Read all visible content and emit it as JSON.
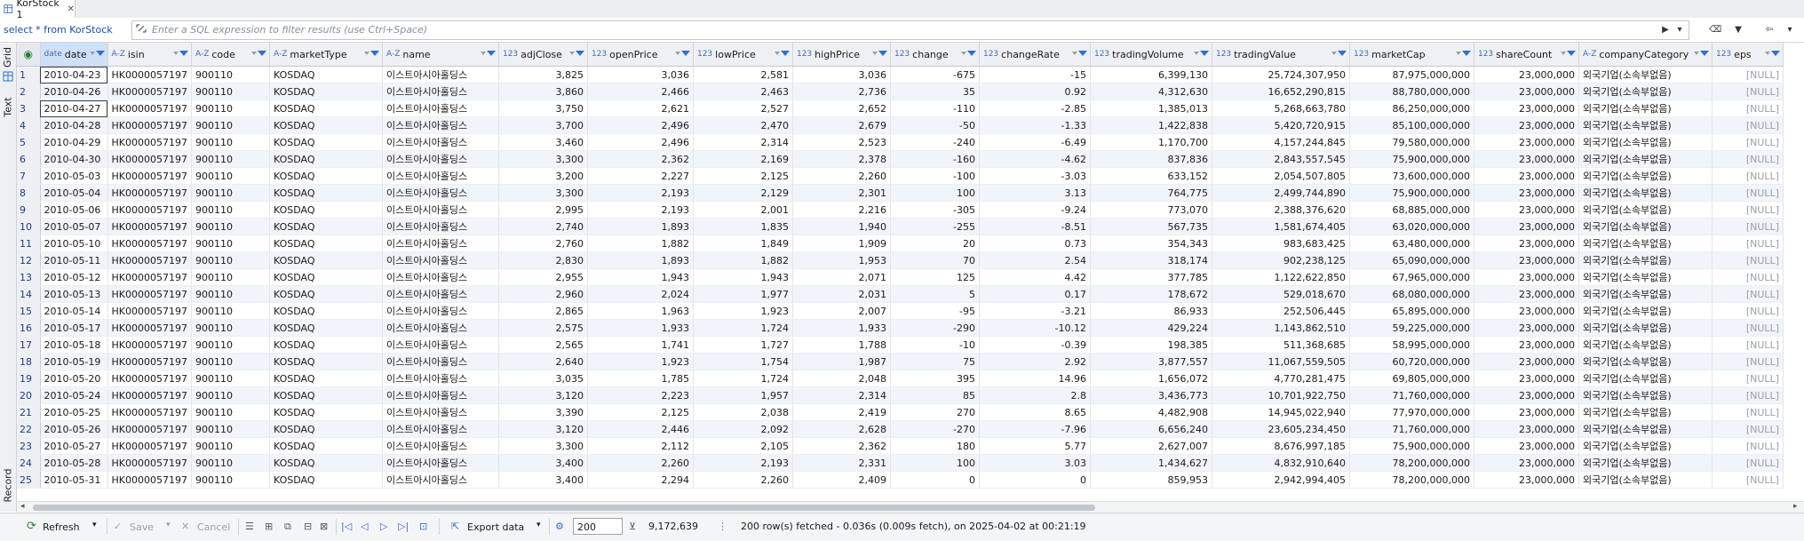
{
  "tab": {
    "title": "KorStock 1",
    "close": "✕"
  },
  "filter": {
    "query": "select * from KorStock",
    "placeholder": "Enter a SQL expression to filter results (use Ctrl+Space)"
  },
  "left_tabs": {
    "grid": "Grid",
    "text": "Text",
    "record": "Record"
  },
  "columns": [
    {
      "type": "date",
      "name": "date"
    },
    {
      "type": "A-Z",
      "name": "isin"
    },
    {
      "type": "A-Z",
      "name": "code"
    },
    {
      "type": "A-Z",
      "name": "marketType"
    },
    {
      "type": "A-Z",
      "name": "name"
    },
    {
      "type": "123",
      "name": "adjClose"
    },
    {
      "type": "123",
      "name": "openPrice"
    },
    {
      "type": "123",
      "name": "lowPrice"
    },
    {
      "type": "123",
      "name": "highPrice"
    },
    {
      "type": "123",
      "name": "change"
    },
    {
      "type": "123",
      "name": "changeRate"
    },
    {
      "type": "123",
      "name": "tradingVolume"
    },
    {
      "type": "123",
      "name": "tradingValue"
    },
    {
      "type": "123",
      "name": "marketCap"
    },
    {
      "type": "123",
      "name": "shareCount"
    },
    {
      "type": "A-Z",
      "name": "companyCategory"
    },
    {
      "type": "123",
      "name": "eps"
    }
  ],
  "rows": [
    [
      "1",
      "2010-04-23",
      "HK0000057197",
      "900110",
      "KOSDAQ",
      "이스트아시아홀딩스",
      "3,825",
      "3,036",
      "2,581",
      "3,036",
      "-675",
      "-15",
      "6,399,130",
      "25,724,307,950",
      "87,975,000,000",
      "23,000,000",
      "외국기업(소속부없음)",
      "[NULL]"
    ],
    [
      "2",
      "2010-04-26",
      "HK0000057197",
      "900110",
      "KOSDAQ",
      "이스트아시아홀딩스",
      "3,860",
      "2,466",
      "2,463",
      "2,736",
      "35",
      "0.92",
      "4,312,630",
      "16,652,290,815",
      "88,780,000,000",
      "23,000,000",
      "외국기업(소속부없음)",
      "[NULL]"
    ],
    [
      "3",
      "2010-04-27",
      "HK0000057197",
      "900110",
      "KOSDAQ",
      "이스트아시아홀딩스",
      "3,750",
      "2,621",
      "2,527",
      "2,652",
      "-110",
      "-2.85",
      "1,385,013",
      "5,268,663,780",
      "86,250,000,000",
      "23,000,000",
      "외국기업(소속부없음)",
      "[NULL]"
    ],
    [
      "4",
      "2010-04-28",
      "HK0000057197",
      "900110",
      "KOSDAQ",
      "이스트아시아홀딩스",
      "3,700",
      "2,496",
      "2,470",
      "2,679",
      "-50",
      "-1.33",
      "1,422,838",
      "5,420,720,915",
      "85,100,000,000",
      "23,000,000",
      "외국기업(소속부없음)",
      "[NULL]"
    ],
    [
      "5",
      "2010-04-29",
      "HK0000057197",
      "900110",
      "KOSDAQ",
      "이스트아시아홀딩스",
      "3,460",
      "2,496",
      "2,314",
      "2,523",
      "-240",
      "-6.49",
      "1,170,700",
      "4,157,244,845",
      "79,580,000,000",
      "23,000,000",
      "외국기업(소속부없음)",
      "[NULL]"
    ],
    [
      "6",
      "2010-04-30",
      "HK0000057197",
      "900110",
      "KOSDAQ",
      "이스트아시아홀딩스",
      "3,300",
      "2,362",
      "2,169",
      "2,378",
      "-160",
      "-4.62",
      "837,836",
      "2,843,557,545",
      "75,900,000,000",
      "23,000,000",
      "외국기업(소속부없음)",
      "[NULL]"
    ],
    [
      "7",
      "2010-05-03",
      "HK0000057197",
      "900110",
      "KOSDAQ",
      "이스트아시아홀딩스",
      "3,200",
      "2,227",
      "2,125",
      "2,260",
      "-100",
      "-3.03",
      "633,152",
      "2,054,507,805",
      "73,600,000,000",
      "23,000,000",
      "외국기업(소속부없음)",
      "[NULL]"
    ],
    [
      "8",
      "2010-05-04",
      "HK0000057197",
      "900110",
      "KOSDAQ",
      "이스트아시아홀딩스",
      "3,300",
      "2,193",
      "2,129",
      "2,301",
      "100",
      "3.13",
      "764,775",
      "2,499,744,890",
      "75,900,000,000",
      "23,000,000",
      "외국기업(소속부없음)",
      "[NULL]"
    ],
    [
      "9",
      "2010-05-06",
      "HK0000057197",
      "900110",
      "KOSDAQ",
      "이스트아시아홀딩스",
      "2,995",
      "2,193",
      "2,001",
      "2,216",
      "-305",
      "-9.24",
      "773,070",
      "2,388,376,620",
      "68,885,000,000",
      "23,000,000",
      "외국기업(소속부없음)",
      "[NULL]"
    ],
    [
      "10",
      "2010-05-07",
      "HK0000057197",
      "900110",
      "KOSDAQ",
      "이스트아시아홀딩스",
      "2,740",
      "1,893",
      "1,835",
      "1,940",
      "-255",
      "-8.51",
      "567,735",
      "1,581,674,405",
      "63,020,000,000",
      "23,000,000",
      "외국기업(소속부없음)",
      "[NULL]"
    ],
    [
      "11",
      "2010-05-10",
      "HK0000057197",
      "900110",
      "KOSDAQ",
      "이스트아시아홀딩스",
      "2,760",
      "1,882",
      "1,849",
      "1,909",
      "20",
      "0.73",
      "354,343",
      "983,683,425",
      "63,480,000,000",
      "23,000,000",
      "외국기업(소속부없음)",
      "[NULL]"
    ],
    [
      "12",
      "2010-05-11",
      "HK0000057197",
      "900110",
      "KOSDAQ",
      "이스트아시아홀딩스",
      "2,830",
      "1,893",
      "1,882",
      "1,953",
      "70",
      "2.54",
      "318,174",
      "902,238,125",
      "65,090,000,000",
      "23,000,000",
      "외국기업(소속부없음)",
      "[NULL]"
    ],
    [
      "13",
      "2010-05-12",
      "HK0000057197",
      "900110",
      "KOSDAQ",
      "이스트아시아홀딩스",
      "2,955",
      "1,943",
      "1,943",
      "2,071",
      "125",
      "4.42",
      "377,785",
      "1,122,622,850",
      "67,965,000,000",
      "23,000,000",
      "외국기업(소속부없음)",
      "[NULL]"
    ],
    [
      "14",
      "2010-05-13",
      "HK0000057197",
      "900110",
      "KOSDAQ",
      "이스트아시아홀딩스",
      "2,960",
      "2,024",
      "1,977",
      "2,031",
      "5",
      "0.17",
      "178,672",
      "529,018,670",
      "68,080,000,000",
      "23,000,000",
      "외국기업(소속부없음)",
      "[NULL]"
    ],
    [
      "15",
      "2010-05-14",
      "HK0000057197",
      "900110",
      "KOSDAQ",
      "이스트아시아홀딩스",
      "2,865",
      "1,963",
      "1,923",
      "2,007",
      "-95",
      "-3.21",
      "86,933",
      "252,506,445",
      "65,895,000,000",
      "23,000,000",
      "외국기업(소속부없음)",
      "[NULL]"
    ],
    [
      "16",
      "2010-05-17",
      "HK0000057197",
      "900110",
      "KOSDAQ",
      "이스트아시아홀딩스",
      "2,575",
      "1,933",
      "1,724",
      "1,933",
      "-290",
      "-10.12",
      "429,224",
      "1,143,862,510",
      "59,225,000,000",
      "23,000,000",
      "외국기업(소속부없음)",
      "[NULL]"
    ],
    [
      "17",
      "2010-05-18",
      "HK0000057197",
      "900110",
      "KOSDAQ",
      "이스트아시아홀딩스",
      "2,565",
      "1,741",
      "1,727",
      "1,788",
      "-10",
      "-0.39",
      "198,385",
      "511,368,685",
      "58,995,000,000",
      "23,000,000",
      "외국기업(소속부없음)",
      "[NULL]"
    ],
    [
      "18",
      "2010-05-19",
      "HK0000057197",
      "900110",
      "KOSDAQ",
      "이스트아시아홀딩스",
      "2,640",
      "1,923",
      "1,754",
      "1,987",
      "75",
      "2.92",
      "3,877,557",
      "11,067,559,505",
      "60,720,000,000",
      "23,000,000",
      "외국기업(소속부없음)",
      "[NULL]"
    ],
    [
      "19",
      "2010-05-20",
      "HK0000057197",
      "900110",
      "KOSDAQ",
      "이스트아시아홀딩스",
      "3,035",
      "1,785",
      "1,724",
      "2,048",
      "395",
      "14.96",
      "1,656,072",
      "4,770,281,475",
      "69,805,000,000",
      "23,000,000",
      "외국기업(소속부없음)",
      "[NULL]"
    ],
    [
      "20",
      "2010-05-24",
      "HK0000057197",
      "900110",
      "KOSDAQ",
      "이스트아시아홀딩스",
      "3,120",
      "2,223",
      "1,957",
      "2,314",
      "85",
      "2.8",
      "3,436,773",
      "10,701,922,750",
      "71,760,000,000",
      "23,000,000",
      "외국기업(소속부없음)",
      "[NULL]"
    ],
    [
      "21",
      "2010-05-25",
      "HK0000057197",
      "900110",
      "KOSDAQ",
      "이스트아시아홀딩스",
      "3,390",
      "2,125",
      "2,038",
      "2,419",
      "270",
      "8.65",
      "4,482,908",
      "14,945,022,940",
      "77,970,000,000",
      "23,000,000",
      "외국기업(소속부없음)",
      "[NULL]"
    ],
    [
      "22",
      "2010-05-26",
      "HK0000057197",
      "900110",
      "KOSDAQ",
      "이스트아시아홀딩스",
      "3,120",
      "2,446",
      "2,092",
      "2,628",
      "-270",
      "-7.96",
      "6,656,240",
      "23,605,234,450",
      "71,760,000,000",
      "23,000,000",
      "외국기업(소속부없음)",
      "[NULL]"
    ],
    [
      "23",
      "2010-05-27",
      "HK0000057197",
      "900110",
      "KOSDAQ",
      "이스트아시아홀딩스",
      "3,300",
      "2,112",
      "2,105",
      "2,362",
      "180",
      "5.77",
      "2,627,007",
      "8,676,997,185",
      "75,900,000,000",
      "23,000,000",
      "외국기업(소속부없음)",
      "[NULL]"
    ],
    [
      "24",
      "2010-05-28",
      "HK0000057197",
      "900110",
      "KOSDAQ",
      "이스트아시아홀딩스",
      "3,400",
      "2,260",
      "2,193",
      "2,331",
      "100",
      "3.03",
      "1,434,627",
      "4,832,910,640",
      "78,200,000,000",
      "23,000,000",
      "외국기업(소속부없음)",
      "[NULL]"
    ],
    [
      "25",
      "2010-05-31",
      "HK0000057197",
      "900110",
      "KOSDAQ",
      "이스트아시아홀딩스",
      "3,400",
      "2,294",
      "2,260",
      "2,409",
      "0",
      "0",
      "859,953",
      "2,942,994,405",
      "78,200,000,000",
      "23,000,000",
      "외국기업(소속부없음)",
      "[NULL]"
    ]
  ],
  "bottom": {
    "refresh": "Refresh",
    "save": "Save",
    "cancel": "Cancel",
    "export": "Export data",
    "limit": "200",
    "total_rows": "9,172,639",
    "status": "200 row(s) fetched - 0.036s (0.009s fetch), on 2025-04-02 at 00:21:19"
  },
  "colors": {
    "accent": "#2f6fd1",
    "header_bg": "#eef0f3",
    "row_alt": "#f1f5fb"
  }
}
